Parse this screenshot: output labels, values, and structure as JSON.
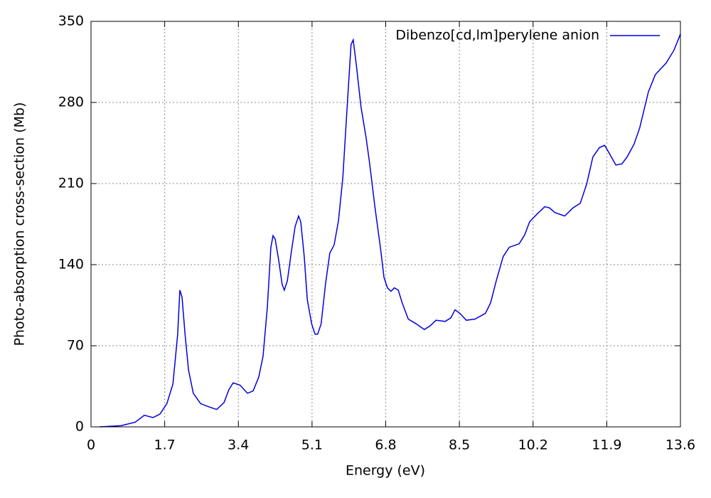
{
  "chart_data": {
    "type": "line",
    "xlabel": "Energy (eV)",
    "ylabel": "Photo-absorption cross-section (Mb)",
    "xlim": [
      0,
      13.6
    ],
    "ylim": [
      0,
      350
    ],
    "xticks": [
      0,
      1.7,
      3.4,
      5.1,
      6.8,
      8.5,
      10.2,
      11.9,
      13.6
    ],
    "yticks": [
      0,
      70,
      140,
      210,
      280,
      350
    ],
    "grid": true,
    "legend": "top-right",
    "x": [
      0.2,
      0.69,
      1.02,
      1.23,
      1.43,
      1.59,
      1.75,
      1.89,
      2.0,
      2.05,
      2.1,
      2.17,
      2.25,
      2.36,
      2.53,
      2.74,
      2.9,
      3.07,
      3.18,
      3.28,
      3.44,
      3.61,
      3.74,
      3.87,
      3.97,
      4.07,
      4.15,
      4.2,
      4.25,
      4.33,
      4.41,
      4.46,
      4.53,
      4.63,
      4.71,
      4.79,
      4.84,
      4.92,
      4.99,
      5.09,
      5.17,
      5.23,
      5.31,
      5.41,
      5.51,
      5.61,
      5.71,
      5.81,
      5.91,
      6.0,
      6.05,
      6.12,
      6.23,
      6.35,
      6.43,
      6.55,
      6.68,
      6.76,
      6.84,
      6.92,
      7.0,
      7.09,
      7.18,
      7.32,
      7.5,
      7.69,
      7.82,
      7.96,
      8.17,
      8.3,
      8.4,
      8.51,
      8.66,
      8.86,
      9.1,
      9.22,
      9.35,
      9.51,
      9.65,
      9.88,
      10.01,
      10.12,
      10.3,
      10.47,
      10.58,
      10.7,
      10.93,
      11.12,
      11.29,
      11.44,
      11.58,
      11.73,
      11.85,
      11.96,
      12.11,
      12.25,
      12.37,
      12.53,
      12.66,
      12.86,
      13.02,
      13.27,
      13.45,
      13.6
    ],
    "series": [
      {
        "name": "Dibenzo[cd,lm]perylene anion",
        "color": "#0000e0",
        "values": [
          0,
          1,
          4,
          10,
          8,
          11,
          20,
          37,
          80,
          118,
          112,
          80,
          49,
          29,
          20,
          17,
          15,
          21,
          32,
          38,
          36,
          29,
          31,
          43,
          61,
          104,
          155,
          165,
          162,
          144,
          123,
          118,
          126,
          153,
          173,
          182,
          177,
          147,
          110,
          89,
          80,
          80,
          89,
          123,
          150,
          157,
          178,
          215,
          276,
          330,
          334,
          313,
          276,
          249,
          227,
          190,
          154,
          129,
          120,
          117,
          120,
          118,
          107,
          93,
          89,
          84,
          87,
          92,
          91,
          94,
          101,
          98,
          92,
          93,
          98,
          107,
          126,
          147,
          155,
          158,
          166,
          177,
          184,
          190,
          189,
          185,
          182,
          189,
          193,
          210,
          233,
          241,
          243,
          236,
          226,
          227,
          233,
          244,
          258,
          289,
          304,
          314,
          325,
          339
        ]
      }
    ]
  }
}
